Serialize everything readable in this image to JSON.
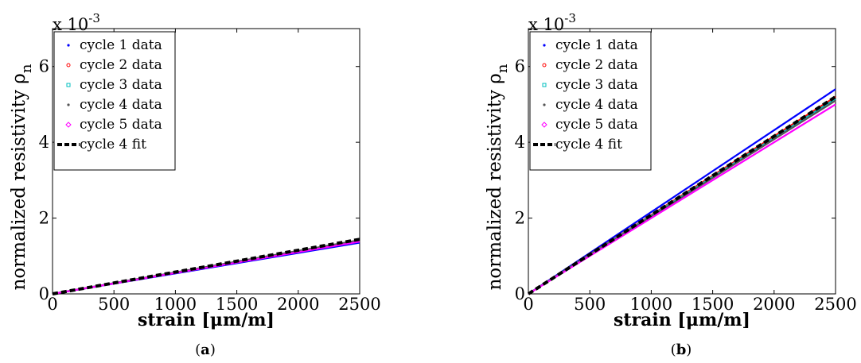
{
  "figure": {
    "captions": [
      "(a)",
      "(b)"
    ]
  },
  "chart_data": [
    {
      "type": "line",
      "caption": "(a)",
      "xlabel": "strain [μm/m]",
      "ylabel": "normalized resistivity ρ",
      "ylabel_subscript": "n",
      "y_multiplier": "x 10",
      "y_multiplier_exponent": "-3",
      "xlim": [
        0,
        2500
      ],
      "ylim": [
        0,
        7
      ],
      "xticks": [
        "0",
        "500",
        "1000",
        "1500",
        "2000",
        "2500"
      ],
      "yticks": [
        "0",
        "2",
        "4",
        "6"
      ],
      "legend_position": "top-left",
      "series": [
        {
          "name": "cycle 1 data",
          "color": "#0000ff",
          "marker": "dot",
          "x": [
            0,
            2500
          ],
          "y": [
            0,
            1.35
          ]
        },
        {
          "name": "cycle 2 data",
          "color": "#ff0000",
          "marker": "circle",
          "x": [
            0,
            2500
          ],
          "y": [
            0,
            1.4
          ]
        },
        {
          "name": "cycle 3 data",
          "color": "#00bfbf",
          "marker": "square",
          "x": [
            0,
            2500
          ],
          "y": [
            0,
            1.41
          ]
        },
        {
          "name": "cycle 4 data",
          "color": "#555555",
          "marker": "dot",
          "x": [
            0,
            2500
          ],
          "y": [
            0,
            1.42
          ]
        },
        {
          "name": "cycle 5 data",
          "color": "#ff00ff",
          "marker": "diamond",
          "x": [
            0,
            2500
          ],
          "y": [
            0,
            1.38
          ]
        },
        {
          "name": "cycle 4 fit",
          "color": "#000000",
          "marker": "dashed",
          "x": [
            0,
            2500
          ],
          "y": [
            0,
            1.44
          ]
        }
      ]
    },
    {
      "type": "line",
      "caption": "(b)",
      "xlabel": "strain [μm/m]",
      "ylabel": "normalized resistivity ρ",
      "ylabel_subscript": "n",
      "y_multiplier": "x 10",
      "y_multiplier_exponent": "-3",
      "xlim": [
        0,
        2500
      ],
      "ylim": [
        0,
        7
      ],
      "xticks": [
        "0",
        "500",
        "1000",
        "1500",
        "2000",
        "2500"
      ],
      "yticks": [
        "0",
        "2",
        "4",
        "6"
      ],
      "legend_position": "top-left",
      "series": [
        {
          "name": "cycle 1 data",
          "color": "#0000ff",
          "marker": "dot",
          "x": [
            0,
            2500
          ],
          "y": [
            0,
            5.4
          ]
        },
        {
          "name": "cycle 2 data",
          "color": "#ff0000",
          "marker": "circle",
          "x": [
            0,
            2500
          ],
          "y": [
            0,
            5.2
          ]
        },
        {
          "name": "cycle 3 data",
          "color": "#00bfbf",
          "marker": "square",
          "x": [
            0,
            2500
          ],
          "y": [
            0,
            5.15
          ]
        },
        {
          "name": "cycle 4 data",
          "color": "#555555",
          "marker": "dot",
          "x": [
            0,
            2500
          ],
          "y": [
            0,
            5.1
          ]
        },
        {
          "name": "cycle 5 data",
          "color": "#ff00ff",
          "marker": "diamond",
          "x": [
            0,
            2500
          ],
          "y": [
            0,
            5.0
          ]
        },
        {
          "name": "cycle 4 fit",
          "color": "#000000",
          "marker": "dashed",
          "x": [
            0,
            2500
          ],
          "y": [
            0,
            5.2
          ]
        }
      ]
    }
  ]
}
